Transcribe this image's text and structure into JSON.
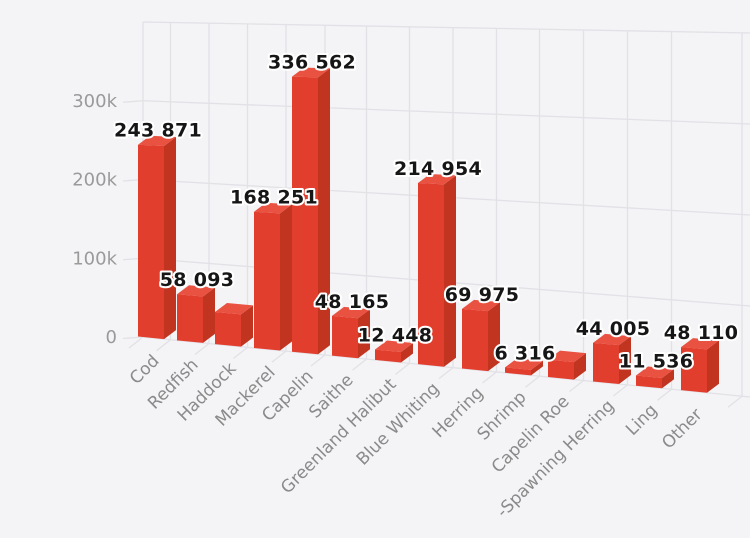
{
  "page": {
    "background": "#f4f4f7",
    "title": "",
    "legend": ""
  },
  "chart_data": {
    "type": "bar",
    "style": "3d-column-perspective",
    "title": "",
    "xlabel": "",
    "ylabel": "",
    "categories": [
      "Cod",
      "Redfish",
      "Haddock",
      "Mackerel",
      "Capelin",
      "Saithe",
      "Greenland Halibut",
      "Blue Whiting",
      "Herring",
      "Shrimp",
      "Capelin Roe",
      "-Spawning Herring",
      "Ling",
      "Other"
    ],
    "values": [
      243871,
      58093,
      40000,
      168251,
      336562,
      48165,
      12448,
      214954,
      69975,
      6316,
      20000,
      44005,
      11536,
      48110
    ],
    "value_labels": [
      "243 871",
      "58 093",
      "",
      "168 251",
      "336 562",
      "48 165",
      "12 448",
      "214 954",
      "69 975",
      "6 316",
      "",
      "44 005",
      "11 536",
      "48 110"
    ],
    "unlabeled_bars_estimated": [
      "Haddock",
      "Capelin Roe"
    ],
    "yticks": [
      {
        "label": "0",
        "value": 0
      },
      {
        "label": "100k",
        "value": 100000
      },
      {
        "label": "200k",
        "value": 200000
      },
      {
        "label": "300k",
        "value": 300000
      }
    ],
    "ylim": [
      0,
      400000
    ],
    "grid": true,
    "legend_position": "none",
    "colors": {
      "bar_front": "#e23e2d",
      "bar_top": "#e95140",
      "bar_side": "#c1341f",
      "grid_line": "#e1e1e6",
      "y_tick_label": "#9a9a9a",
      "x_tick_label": "#8a8a8a",
      "value_label": "#161616",
      "value_label_halo": "#ffffff",
      "background": "#f4f4f7"
    }
  }
}
